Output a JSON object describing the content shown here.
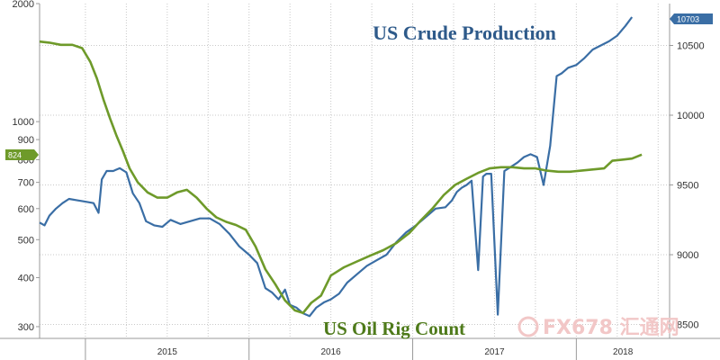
{
  "chart_data": {
    "type": "line",
    "annotations": [
      "US Crude Production",
      "US Oil Rig Count"
    ],
    "x_tick_labels": [
      "2015",
      "2016",
      "2017",
      "2018"
    ],
    "left_axis": {
      "scale": "log",
      "range": [
        280,
        2000
      ],
      "ticks": [
        2000,
        1000,
        900,
        800,
        700,
        600,
        500,
        400,
        300
      ]
    },
    "right_axis": {
      "scale": "linear",
      "range": [
        8400,
        10800
      ],
      "ticks": [
        10500,
        10000,
        9500,
        9000,
        8500
      ]
    },
    "grid": true,
    "x_range": [
      2014.72,
      2018.57
    ],
    "series": [
      {
        "name": "US Crude Production",
        "axis": "right",
        "color": "#3a6ea5",
        "last_value_label": "10703",
        "x": [
          2014.72,
          2014.75,
          2014.78,
          2014.82,
          2014.86,
          2014.9,
          2014.95,
          2015.0,
          2015.05,
          2015.08,
          2015.1,
          2015.13,
          2015.17,
          2015.21,
          2015.25,
          2015.29,
          2015.33,
          2015.37,
          2015.42,
          2015.47,
          2015.52,
          2015.58,
          2015.64,
          2015.7,
          2015.76,
          2015.82,
          2015.88,
          2015.94,
          2016.0,
          2016.05,
          2016.1,
          2016.14,
          2016.18,
          2016.22,
          2016.25,
          2016.29,
          2016.33,
          2016.37,
          2016.41,
          2016.46,
          2016.5,
          2016.55,
          2016.6,
          2016.66,
          2016.72,
          2016.78,
          2016.84,
          2016.9,
          2016.96,
          2017.02,
          2017.08,
          2017.14,
          2017.2,
          2017.24,
          2017.27,
          2017.3,
          2017.33,
          2017.36,
          2017.4,
          2017.43,
          2017.45,
          2017.48,
          2017.52,
          2017.56,
          2017.6,
          2017.64,
          2017.68,
          2017.72,
          2017.76,
          2017.8,
          2017.84,
          2017.88,
          2017.91,
          2017.95,
          2018.0,
          2018.05,
          2018.1,
          2018.15,
          2018.2,
          2018.25,
          2018.3,
          2018.34
        ],
        "values": [
          9230,
          9210,
          9280,
          9330,
          9370,
          9400,
          9390,
          9380,
          9370,
          9300,
          9540,
          9600,
          9600,
          9620,
          9590,
          9440,
          9370,
          9240,
          9210,
          9200,
          9250,
          9220,
          9240,
          9260,
          9260,
          9220,
          9150,
          9060,
          9000,
          8940,
          8760,
          8730,
          8680,
          8750,
          8640,
          8620,
          8580,
          8560,
          8620,
          8660,
          8680,
          8720,
          8800,
          8860,
          8920,
          8960,
          9000,
          9090,
          9160,
          9210,
          9270,
          9330,
          9340,
          9390,
          9450,
          9480,
          9500,
          9530,
          8890,
          9560,
          9580,
          9580,
          8570,
          9600,
          9630,
          9660,
          9700,
          9720,
          9700,
          9500,
          9780,
          10280,
          10300,
          10340,
          10360,
          10410,
          10470,
          10500,
          10530,
          10570,
          10640,
          10703
        ]
      },
      {
        "name": "US Oil Rig Count",
        "axis": "left",
        "color": "#6e9a2a",
        "last_value_label": "824",
        "x": [
          2014.72,
          2014.78,
          2014.85,
          2014.92,
          2014.98,
          2015.03,
          2015.07,
          2015.11,
          2015.15,
          2015.19,
          2015.23,
          2015.27,
          2015.32,
          2015.38,
          2015.44,
          2015.5,
          2015.56,
          2015.62,
          2015.68,
          2015.74,
          2015.8,
          2015.86,
          2015.92,
          2015.98,
          2016.04,
          2016.1,
          2016.16,
          2016.22,
          2016.28,
          2016.33,
          2016.38,
          2016.44,
          2016.5,
          2016.58,
          2016.66,
          2016.74,
          2016.82,
          2016.9,
          2016.98,
          2017.05,
          2017.12,
          2017.19,
          2017.26,
          2017.33,
          2017.4,
          2017.47,
          2017.54,
          2017.61,
          2017.68,
          2017.75,
          2017.82,
          2017.89,
          2017.96,
          2018.03,
          2018.1,
          2018.17,
          2018.22,
          2018.28,
          2018.34,
          2018.4
        ],
        "values": [
          1600,
          1590,
          1570,
          1570,
          1540,
          1420,
          1290,
          1140,
          1020,
          920,
          840,
          760,
          700,
          660,
          640,
          640,
          660,
          670,
          640,
          600,
          570,
          555,
          545,
          530,
          480,
          420,
          385,
          350,
          330,
          325,
          345,
          360,
          405,
          425,
          440,
          455,
          470,
          490,
          520,
          560,
          600,
          650,
          690,
          715,
          740,
          760,
          765,
          765,
          760,
          760,
          750,
          745,
          745,
          750,
          755,
          760,
          795,
          800,
          805,
          824
        ]
      }
    ]
  },
  "watermark": {
    "text": "FX678 汇通网",
    "color": "#f2c7c7"
  }
}
